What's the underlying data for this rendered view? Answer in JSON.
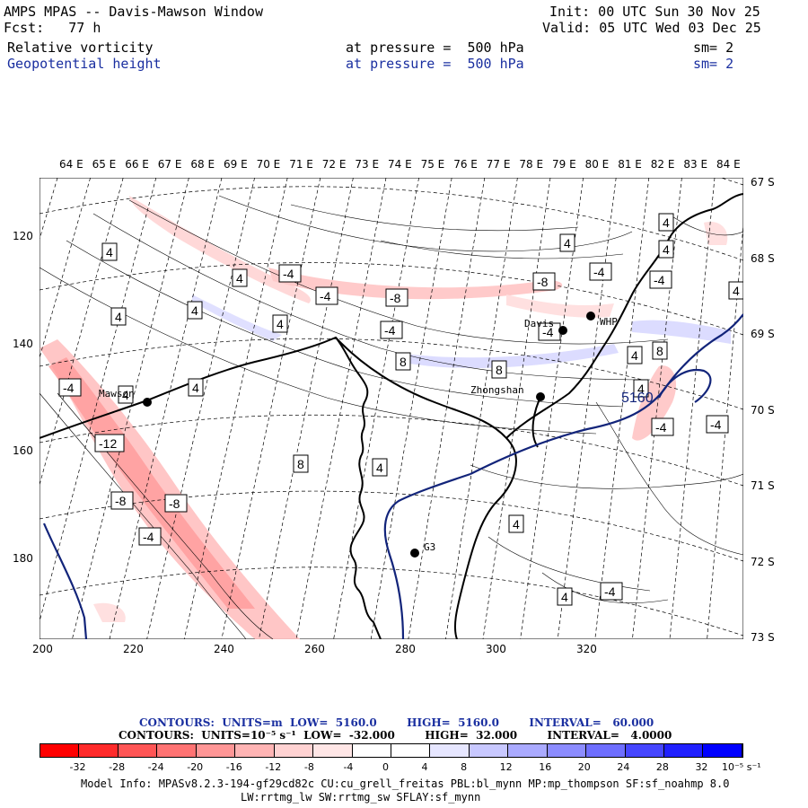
{
  "header": {
    "title": "AMPS MPAS -- Davis-Mawson Window",
    "fcst": "Fcst:   77 h",
    "init": "Init: 00 UTC Sun 30 Nov 25",
    "valid": "Valid: 05 UTC Wed 03 Dec 25",
    "field1_name": "Relative vorticity",
    "field1_level": "at pressure =  500 hPa",
    "field1_sm": "sm= 2",
    "field2_name": "Geopotential height",
    "field2_level": "at pressure =  500 hPa",
    "field2_sm": "sm= 2"
  },
  "lon_labels": [
    "64 E",
    "65 E",
    "66 E",
    "67 E",
    "68 E",
    "69 E",
    "70 E",
    "71 E",
    "72 E",
    "73 E",
    "74 E",
    "75 E",
    "76 E",
    "77 E",
    "78 E",
    "79 E",
    "80 E",
    "81 E",
    "82 E",
    "83 E",
    "84 E"
  ],
  "lat_labels": [
    "67 S",
    "68 S",
    "69 S",
    "70 S",
    "71 S",
    "72 S",
    "73 S"
  ],
  "y_ticks": [
    "120",
    "140",
    "160",
    "180"
  ],
  "x_ticks": [
    "200",
    "220",
    "240",
    "260",
    "280",
    "300",
    "320"
  ],
  "stations": [
    {
      "name": "Mawson"
    },
    {
      "name": "Davis"
    },
    {
      "name": "WHP"
    },
    {
      "name": "Zhongshan"
    },
    {
      "name": "G3"
    }
  ],
  "contour_labels": [
    "4",
    "4",
    "-4",
    "4",
    "4",
    "-4",
    "-8",
    "-8",
    "-4",
    "4",
    "-4",
    "-4",
    "4",
    "4",
    "4",
    "8",
    "-4",
    "8",
    "4",
    "8",
    "4",
    "-4",
    "-12",
    "-8",
    "-8",
    "-4",
    "8",
    "4",
    "4",
    "4",
    "4",
    "4",
    "-4",
    "-4",
    "-4",
    "4"
  ],
  "height_label": "5160",
  "contours_line1": "CONTOURS:  UNITS=m  LOW=  5160.0        HIGH=  5160.0        INTERVAL=   60.000",
  "contours_line2": "CONTOURS:  UNITS=10⁻⁵ s⁻¹  LOW=  -32.000        HIGH=  32.000        INTERVAL=   4.0000",
  "colorbar": {
    "colors": [
      "#ff0000",
      "#ff2a2a",
      "#ff5555",
      "#ff7373",
      "#ff9696",
      "#ffb4b4",
      "#ffd2d2",
      "#ffe6e6",
      "#ffffff",
      "#ffffff",
      "#e6e6ff",
      "#c8c8ff",
      "#aaaaff",
      "#8c8cff",
      "#6e6eff",
      "#4646ff",
      "#2020ff",
      "#0000ff"
    ],
    "ticks": [
      "-32",
      "-28",
      "-24",
      "-20",
      "-16",
      "-12",
      "-8",
      "-4",
      "0",
      "4",
      "8",
      "12",
      "16",
      "20",
      "24",
      "28",
      "32"
    ],
    "units": "10⁻⁵ s⁻¹"
  },
  "model_info_1": "Model Info: MPASv8.2.3-194-gf29cd82c CU:cu_grell_freitas PBL:bl_mynn MP:mp_thompson SF:sf_noahmp 8.0",
  "model_info_2": "LW:rrtmg_lw SW:rrtmg_sw SFLAY:sf_mynn"
}
